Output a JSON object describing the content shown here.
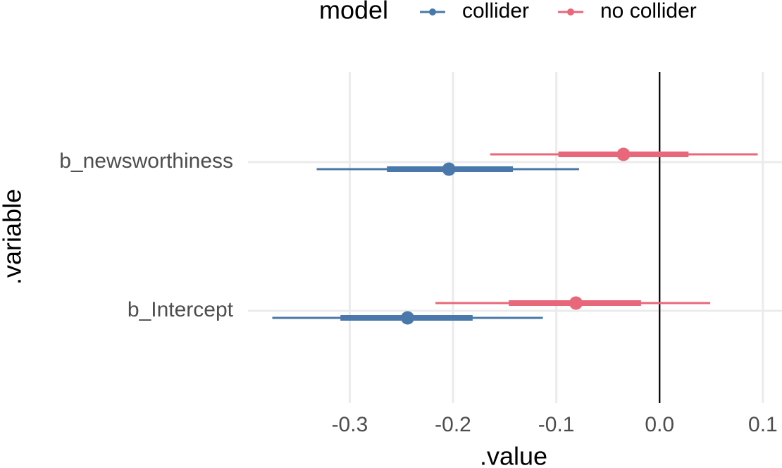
{
  "chart_data": {
    "type": "pointrange",
    "xlabel": ".value",
    "ylabel": ".variable",
    "xlim": [
      -0.3985,
      0.1185
    ],
    "x_ticks": [
      -0.3,
      -0.2,
      -0.1,
      0.0,
      0.1
    ],
    "x_tick_labels": [
      "-0.3",
      "-0.2",
      "-0.1",
      "0.0",
      "0.1"
    ],
    "categories": [
      "b_newsworthiness",
      "b_Intercept"
    ],
    "reference_line_x": 0.0,
    "grid": true,
    "legend": {
      "title": "model",
      "position": "top",
      "entries": [
        "collider",
        "no collider"
      ]
    },
    "series": [
      {
        "name": "collider",
        "color": "#4a78aa",
        "points": [
          {
            "category": "b_newsworthiness",
            "estimate": -0.204,
            "inner": [
              -0.264,
              -0.142
            ],
            "outer": [
              -0.332,
              -0.078
            ]
          },
          {
            "category": "b_Intercept",
            "estimate": -0.244,
            "inner": [
              -0.309,
              -0.181
            ],
            "outer": [
              -0.375,
              -0.113
            ]
          }
        ]
      },
      {
        "name": "no collider",
        "color": "#e8677a",
        "points": [
          {
            "category": "b_newsworthiness",
            "estimate": -0.035,
            "inner": [
              -0.098,
              0.028
            ],
            "outer": [
              -0.164,
              0.095
            ]
          },
          {
            "category": "b_Intercept",
            "estimate": -0.081,
            "inner": [
              -0.146,
              -0.018
            ],
            "outer": [
              -0.217,
              0.049
            ]
          }
        ]
      }
    ]
  }
}
